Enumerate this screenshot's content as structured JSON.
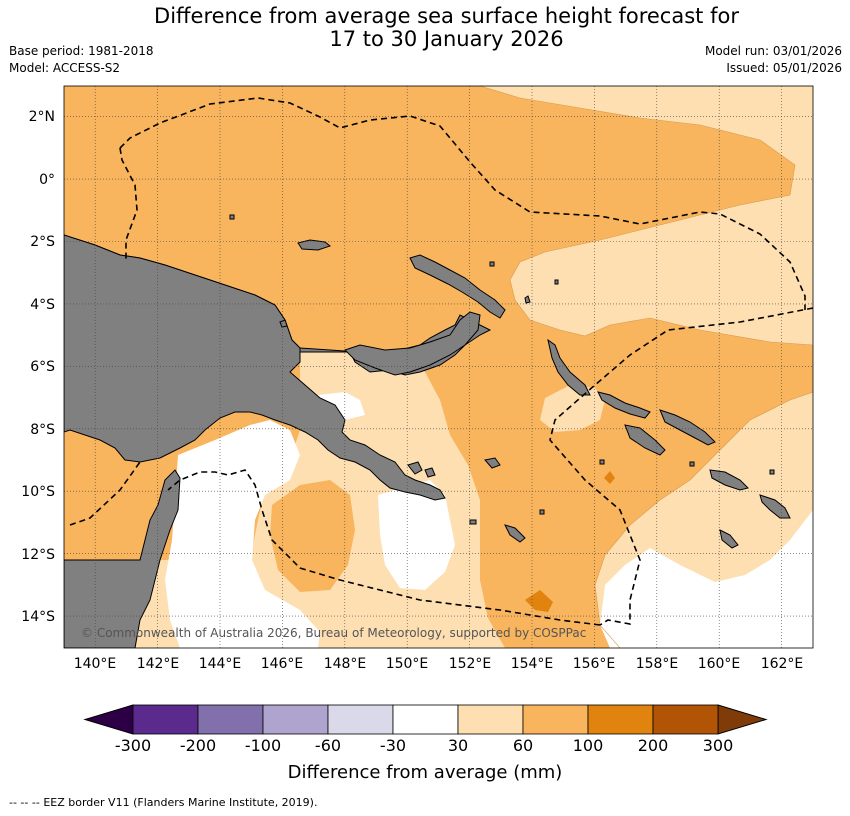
{
  "title": {
    "line1": "Difference from average sea surface height forecast for",
    "line2": "17 to 30 January 2026"
  },
  "info": {
    "base_period": "Base period: 1981-2018",
    "model": "Model: ACCESS-S2",
    "model_run": "Model run: 03/01/2026",
    "issued": "Issued: 05/01/2026"
  },
  "map": {
    "lat_labels": [
      "2°N",
      "0°",
      "2°S",
      "4°S",
      "6°S",
      "8°S",
      "10°S",
      "12°S",
      "14°S"
    ],
    "lon_labels": [
      "140°E",
      "142°E",
      "144°E",
      "146°E",
      "148°E",
      "150°E",
      "152°E",
      "154°E",
      "156°E",
      "158°E",
      "160°E",
      "162°E"
    ],
    "copyright": "© Commonwealth of Australia 2026, Bureau of Meteorology, supported by COSPPac"
  },
  "colorbar": {
    "ticks": [
      "-300",
      "-200",
      "-100",
      "-60",
      "-30",
      "30",
      "60",
      "100",
      "200",
      "300"
    ],
    "colors": [
      "#5a2a8c",
      "#8270ad",
      "#aea4cd",
      "#d9d9ea",
      "#ffffff",
      "#fddfb2",
      "#f9b45e",
      "#e1830f",
      "#b15405"
    ],
    "under_color": "#2d0046",
    "over_color": "#7f3b08",
    "label": "Difference from average (mm)"
  },
  "legend": {
    "eez_symbol": "--  --  --",
    "eez_text": "EEZ border V11 (Flanders Marine Institute, 2019)."
  }
}
